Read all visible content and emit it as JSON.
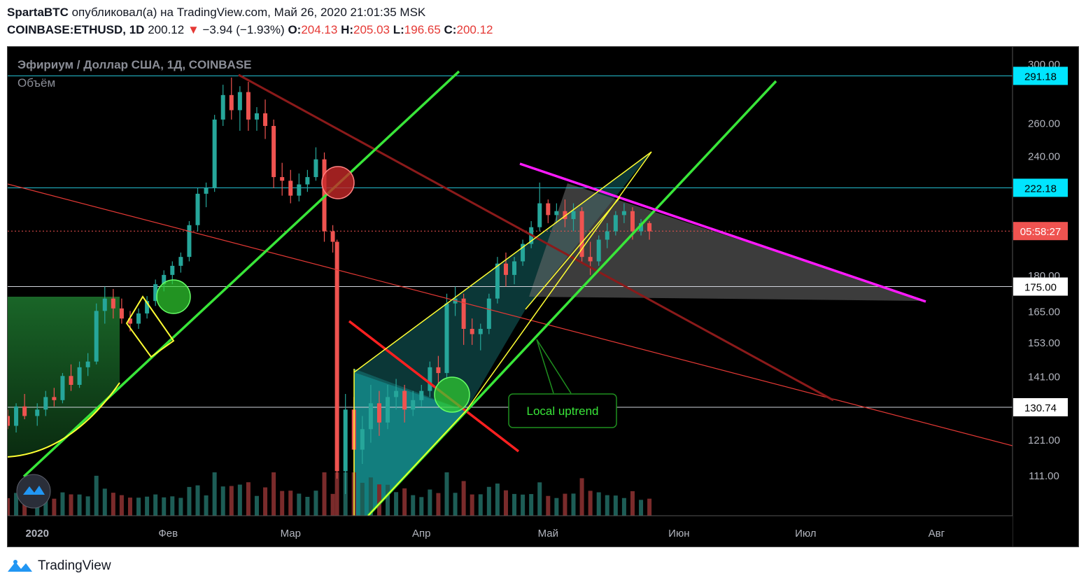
{
  "header": {
    "author": "SpartaBTC",
    "published_text": "опубликовал(а) на TradingView.com, Май 26, 2020 21:01:35 MSK",
    "symbol": "COINBASE:ETHUSD, 1D",
    "last": "200.12",
    "change": "−3.94 (−1.93%)",
    "o_label": "O:",
    "o": "204.13",
    "h_label": "H:",
    "h": "205.03",
    "l_label": "L:",
    "l": "196.65",
    "c_label": "C:",
    "c": "200.12",
    "down_color": "#e53935"
  },
  "chart_data": {
    "type": "candlestick",
    "title": "Эфириум / Доллар США, 1Д, COINBASE",
    "subtitle": "Объём",
    "y_ticks": [
      300,
      260,
      240,
      180,
      165,
      153,
      141,
      121,
      111
    ],
    "y_tick_labels": [
      "300.00",
      "260.00",
      "240.00",
      "180.00",
      "165.00",
      "153.00",
      "141.00",
      "121.00",
      "111.00"
    ],
    "y_scale": "log",
    "ylim": [
      103,
      305
    ],
    "x_tick_labels": [
      "2020",
      "Фев",
      "Мар",
      "Апр",
      "Май",
      "Июн",
      "Июл",
      "Авг"
    ],
    "x_tick_dates": [
      "2020-01-01",
      "2020-02-01",
      "2020-03-01",
      "2020-04-01",
      "2020-05-01",
      "2020-06-01",
      "2020-07-01",
      "2020-08-01"
    ],
    "xlim": [
      "2019-12-25",
      "2020-08-19"
    ],
    "price_labels": [
      {
        "text": "291.18",
        "value": 291.18,
        "style": "cyan"
      },
      {
        "text": "222.18",
        "value": 222.18,
        "style": "cyan"
      },
      {
        "text": "05:58:27",
        "value": 200.12,
        "style": "red"
      },
      {
        "text": "175.00",
        "value": 175.0,
        "style": "white"
      },
      {
        "text": "130.74",
        "value": 130.74,
        "style": "white"
      }
    ],
    "horizontal_levels": [
      291.18,
      222.18,
      175.0,
      130.74
    ],
    "annotation": "Local uptrend",
    "colors": {
      "up": "#26a69a",
      "down": "#ef5350",
      "green_line": "#39e639",
      "magenta": "#ff1aff",
      "yellow": "#ffff33"
    },
    "candles": [
      [
        "2019-12-25",
        128,
        130,
        124,
        125
      ],
      [
        "2019-12-27",
        125,
        132,
        123,
        131
      ],
      [
        "2019-12-29",
        131,
        135,
        127,
        128
      ],
      [
        "2020-01-01",
        128,
        132,
        125,
        130
      ],
      [
        "2020-01-03",
        130,
        136,
        128,
        134
      ],
      [
        "2020-01-05",
        134,
        137,
        131,
        133
      ],
      [
        "2020-01-07",
        133,
        142,
        132,
        141
      ],
      [
        "2020-01-09",
        141,
        145,
        136,
        138
      ],
      [
        "2020-01-11",
        138,
        146,
        137,
        144
      ],
      [
        "2020-01-13",
        144,
        149,
        141,
        146
      ],
      [
        "2020-01-15",
        146,
        168,
        145,
        165
      ],
      [
        "2020-01-17",
        165,
        175,
        160,
        170
      ],
      [
        "2020-01-19",
        170,
        174,
        162,
        166
      ],
      [
        "2020-01-21",
        166,
        170,
        160,
        162
      ],
      [
        "2020-01-23",
        162,
        165,
        157,
        160
      ],
      [
        "2020-01-25",
        160,
        166,
        158,
        164
      ],
      [
        "2020-01-27",
        164,
        171,
        162,
        169
      ],
      [
        "2020-01-29",
        169,
        178,
        167,
        176
      ],
      [
        "2020-01-31",
        176,
        182,
        173,
        180
      ],
      [
        "2020-02-02",
        180,
        186,
        176,
        184
      ],
      [
        "2020-02-04",
        184,
        190,
        181,
        188
      ],
      [
        "2020-02-06",
        188,
        205,
        186,
        203
      ],
      [
        "2020-02-08",
        203,
        222,
        200,
        219
      ],
      [
        "2020-02-10",
        219,
        225,
        212,
        222
      ],
      [
        "2020-02-12",
        222,
        265,
        220,
        262
      ],
      [
        "2020-02-14",
        262,
        285,
        258,
        278
      ],
      [
        "2020-02-16",
        278,
        290,
        262,
        268
      ],
      [
        "2020-02-18",
        268,
        284,
        255,
        280
      ],
      [
        "2020-02-20",
        280,
        287,
        255,
        262
      ],
      [
        "2020-02-22",
        262,
        270,
        255,
        266
      ],
      [
        "2020-02-24",
        266,
        275,
        250,
        258
      ],
      [
        "2020-02-26",
        258,
        262,
        222,
        228
      ],
      [
        "2020-02-28",
        228,
        236,
        218,
        226
      ],
      [
        "2020-03-01",
        226,
        232,
        214,
        218
      ],
      [
        "2020-03-03",
        218,
        230,
        215,
        224
      ],
      [
        "2020-03-05",
        224,
        232,
        220,
        228
      ],
      [
        "2020-03-07",
        228,
        245,
        226,
        238
      ],
      [
        "2020-03-09",
        238,
        242,
        195,
        200
      ],
      [
        "2020-03-11",
        200,
        203,
        190,
        195
      ],
      [
        "2020-03-12",
        195,
        196,
        110,
        112
      ],
      [
        "2020-03-14",
        112,
        135,
        106,
        130
      ],
      [
        "2020-03-16",
        130,
        134,
        112,
        118
      ],
      [
        "2020-03-18",
        118,
        128,
        114,
        124
      ],
      [
        "2020-03-20",
        124,
        138,
        120,
        132
      ],
      [
        "2020-03-22",
        132,
        136,
        122,
        126
      ],
      [
        "2020-03-24",
        126,
        138,
        124,
        134
      ],
      [
        "2020-03-26",
        134,
        140,
        130,
        136
      ],
      [
        "2020-03-28",
        136,
        138,
        126,
        130
      ],
      [
        "2020-03-30",
        130,
        136,
        128,
        133
      ],
      [
        "2020-04-01",
        133,
        138,
        131,
        136
      ],
      [
        "2020-04-03",
        136,
        146,
        134,
        144
      ],
      [
        "2020-04-05",
        144,
        148,
        138,
        142
      ],
      [
        "2020-04-07",
        142,
        172,
        140,
        168
      ],
      [
        "2020-04-09",
        168,
        175,
        163,
        170
      ],
      [
        "2020-04-11",
        170,
        172,
        152,
        158
      ],
      [
        "2020-04-13",
        158,
        162,
        152,
        156
      ],
      [
        "2020-04-15",
        156,
        160,
        150,
        158
      ],
      [
        "2020-04-17",
        158,
        172,
        156,
        170
      ],
      [
        "2020-04-19",
        170,
        188,
        168,
        185
      ],
      [
        "2020-04-21",
        185,
        190,
        175,
        180
      ],
      [
        "2020-04-23",
        180,
        188,
        176,
        186
      ],
      [
        "2020-04-25",
        186,
        196,
        184,
        194
      ],
      [
        "2020-04-27",
        194,
        205,
        192,
        202
      ],
      [
        "2020-04-29",
        202,
        225,
        200,
        214
      ],
      [
        "2020-05-01",
        214,
        216,
        204,
        208
      ],
      [
        "2020-05-03",
        208,
        214,
        204,
        210
      ],
      [
        "2020-05-05",
        210,
        216,
        202,
        206
      ],
      [
        "2020-05-07",
        206,
        214,
        200,
        210
      ],
      [
        "2020-05-09",
        210,
        212,
        185,
        188
      ],
      [
        "2020-05-11",
        188,
        195,
        180,
        186
      ],
      [
        "2020-05-13",
        186,
        198,
        184,
        196
      ],
      [
        "2020-05-15",
        196,
        204,
        192,
        200
      ],
      [
        "2020-05-17",
        200,
        210,
        198,
        208
      ],
      [
        "2020-05-19",
        208,
        214,
        204,
        210
      ],
      [
        "2020-05-21",
        210,
        212,
        196,
        200
      ],
      [
        "2020-05-23",
        200,
        206,
        198,
        204
      ],
      [
        "2020-05-25",
        204,
        205,
        196,
        200
      ]
    ]
  }
}
